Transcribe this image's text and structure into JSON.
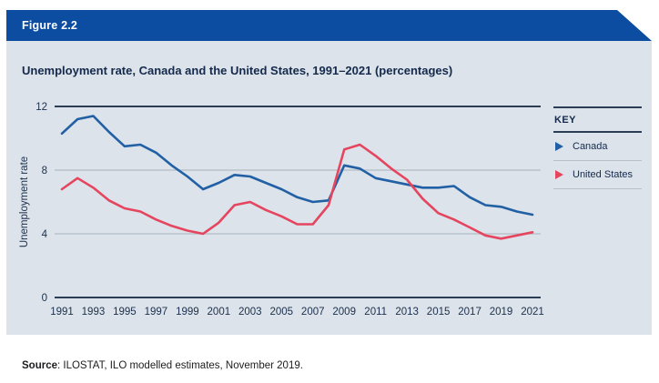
{
  "figure_label": "Figure 2.2",
  "title": "Unemployment rate, Canada and the United States, 1991–2021 (percentages)",
  "key": {
    "label": "KEY"
  },
  "source": {
    "label": "Source",
    "text": ": ILOSTAT, ILO modelled estimates, November 2019."
  },
  "colors": {
    "header_bg": "#0d4da1",
    "panel_bg": "#dce3ea",
    "canada": "#2160a4",
    "united_states": "#e5455e",
    "grid_dark": "#2c3e54",
    "grid_light": "#b3bcc6",
    "tick_text": "#1c2f4c",
    "title_text": "#14294b"
  },
  "chart_data": {
    "type": "line",
    "title": "Unemployment rate, Canada and the United States, 1991–2021 (percentages)",
    "xlabel": "",
    "ylabel": "Unemployment rate",
    "ylim": [
      0,
      12
    ],
    "yticks": [
      0,
      4,
      8,
      12
    ],
    "grid": "horizontal",
    "legend_position": "right",
    "x": [
      1991,
      1992,
      1993,
      1994,
      1995,
      1996,
      1997,
      1998,
      1999,
      2000,
      2001,
      2002,
      2003,
      2004,
      2005,
      2006,
      2007,
      2008,
      2009,
      2010,
      2011,
      2012,
      2013,
      2014,
      2015,
      2016,
      2017,
      2018,
      2019,
      2020,
      2021
    ],
    "x_tick_labels": [
      "1991",
      "1993",
      "1995",
      "1997",
      "1999",
      "2001",
      "2003",
      "2005",
      "2007",
      "2009",
      "2011",
      "2013",
      "2015",
      "2017",
      "2019",
      "2021"
    ],
    "series": [
      {
        "name": "Canada",
        "color": "#2160a4",
        "values": [
          10.3,
          11.2,
          11.4,
          10.4,
          9.5,
          9.6,
          9.1,
          8.3,
          7.6,
          6.8,
          7.2,
          7.7,
          7.6,
          7.2,
          6.8,
          6.3,
          6.0,
          6.1,
          8.3,
          8.1,
          7.5,
          7.3,
          7.1,
          6.9,
          6.9,
          7.0,
          6.3,
          5.8,
          5.7,
          5.4,
          5.2
        ]
      },
      {
        "name": "United States",
        "color": "#e5455e",
        "values": [
          6.8,
          7.5,
          6.9,
          6.1,
          5.6,
          5.4,
          4.9,
          4.5,
          4.2,
          4.0,
          4.7,
          5.8,
          6.0,
          5.5,
          5.1,
          4.6,
          4.6,
          5.8,
          9.3,
          9.6,
          8.9,
          8.1,
          7.4,
          6.2,
          5.3,
          4.9,
          4.4,
          3.9,
          3.7,
          3.9,
          4.1
        ]
      }
    ]
  }
}
